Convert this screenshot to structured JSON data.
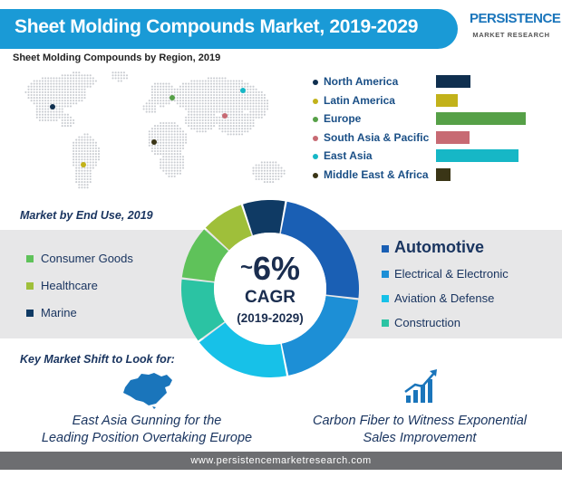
{
  "header": {
    "title": "Sheet Molding Compounds Market, 2019-2029",
    "logo_top": "PERSISTENCE",
    "logo_bottom": "MARKET RESEARCH"
  },
  "region_section": {
    "subtitle": "Sheet Molding Compounds by Region, 2019"
  },
  "chart_data": [
    {
      "type": "bar",
      "title": "Sheet Molding Compounds by Region, 2019",
      "orientation": "horizontal",
      "categories": [
        "North America",
        "Latin America",
        "Europe",
        "South Asia & Pacific",
        "East Asia",
        "Middle East & Africa"
      ],
      "values": [
        38,
        24,
        100,
        37,
        92,
        16
      ],
      "colors": [
        "#0f2f4f",
        "#c2b21a",
        "#56a047",
        "#c76a73",
        "#16b7c6",
        "#3a3516"
      ],
      "xlabel": "",
      "ylabel": "",
      "grid": false,
      "legend": "left of bars"
    },
    {
      "type": "pie",
      "title": "Market by End Use, 2019",
      "subtype": "donut",
      "categories": [
        "Automotive",
        "Electrical & Electronic",
        "Aviation & Defense",
        "Construction",
        "Consumer Goods",
        "Healthcare",
        "Marine"
      ],
      "values": [
        24,
        20,
        18,
        12,
        10,
        8,
        8
      ],
      "colors": [
        "#1a5fb4",
        "#1d8fd6",
        "#17c1e8",
        "#2bc3a3",
        "#5fc25a",
        "#9fbf3a",
        "#0f3a64"
      ],
      "center_text": {
        "value": "6%",
        "prefix": "~",
        "label": "CAGR",
        "period": "(2019-2029)"
      }
    }
  ],
  "enduse_legend_left": [
    {
      "label": "Consumer Goods",
      "color": "#5fc25a"
    },
    {
      "label": "Healthcare",
      "color": "#9fbf3a"
    },
    {
      "label": "Marine",
      "color": "#0f3a64"
    }
  ],
  "enduse_legend_right": [
    {
      "label": "Automotive",
      "color": "#1a5fb4"
    },
    {
      "label": "Electrical & Electronic",
      "color": "#1d8fd6"
    },
    {
      "label": "Aviation & Defense",
      "color": "#17c1e8"
    },
    {
      "label": "Construction",
      "color": "#2bc3a3"
    }
  ],
  "key_shift": {
    "title": "Key Market Shift to Look for:",
    "left_line1": "East Asia Gunning for the",
    "left_line2": "Leading Position Overtaking Europe",
    "right_line1": "Carbon Fiber to Witness Exponential",
    "right_line2": "Sales Improvement"
  },
  "footer": {
    "url": "www.persistencemarketresearch.com"
  },
  "icons": [
    "world-map-icon",
    "china-map-icon",
    "growth-chart-icon"
  ]
}
